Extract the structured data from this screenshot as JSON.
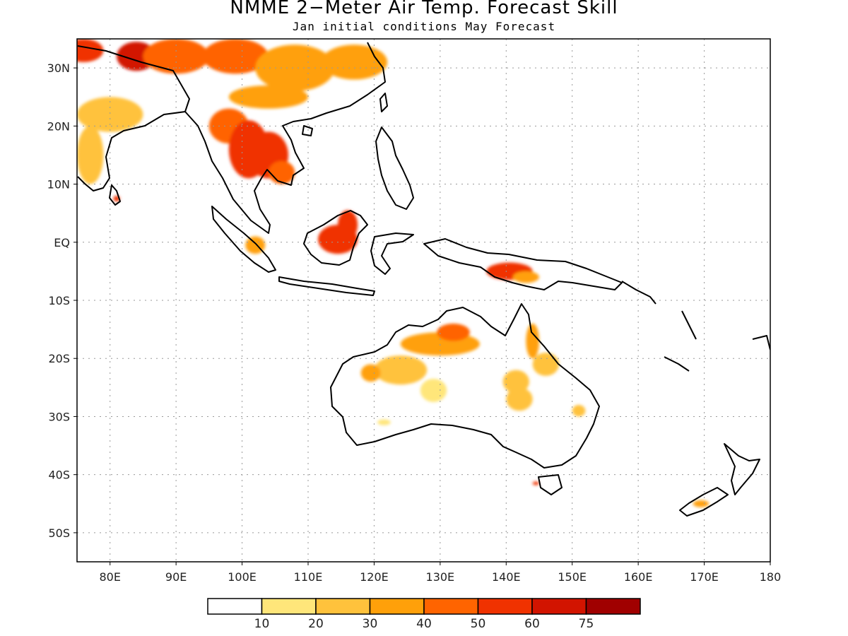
{
  "title": "NMME 2−Meter Air Temp. Forecast Skill",
  "subtitle": "Jan initial conditions  May Forecast",
  "map": {
    "lon_range": [
      75,
      180
    ],
    "lat_range": [
      -55,
      35
    ],
    "lat_ticks": [
      {
        "lat": 30,
        "label": "30N"
      },
      {
        "lat": 20,
        "label": "20N"
      },
      {
        "lat": 10,
        "label": "10N"
      },
      {
        "lat": 0,
        "label": "EQ"
      },
      {
        "lat": -10,
        "label": "10S"
      },
      {
        "lat": -20,
        "label": "20S"
      },
      {
        "lat": -30,
        "label": "30S"
      },
      {
        "lat": -40,
        "label": "40S"
      },
      {
        "lat": -50,
        "label": "50S"
      }
    ],
    "lon_ticks": [
      {
        "lon": 80,
        "label": "80E"
      },
      {
        "lon": 90,
        "label": "90E"
      },
      {
        "lon": 100,
        "label": "100E"
      },
      {
        "lon": 110,
        "label": "110E"
      },
      {
        "lon": 120,
        "label": "120E"
      },
      {
        "lon": 130,
        "label": "130E"
      },
      {
        "lon": 140,
        "label": "140E"
      },
      {
        "lon": 150,
        "label": "150E"
      },
      {
        "lon": 160,
        "label": "160E"
      },
      {
        "lon": 170,
        "label": "170E"
      },
      {
        "lon": 180,
        "label": "180"
      }
    ],
    "grid": true,
    "skill_patches": [
      {
        "lon": 76,
        "lat": 33,
        "rx": 3,
        "ry": 2,
        "level": 5
      },
      {
        "lon": 84,
        "lat": 32,
        "rx": 3,
        "ry": 2.5,
        "level": 6
      },
      {
        "lon": 90,
        "lat": 32,
        "rx": 5,
        "ry": 3,
        "level": 4
      },
      {
        "lon": 99,
        "lat": 32,
        "rx": 5,
        "ry": 3,
        "level": 4
      },
      {
        "lon": 108,
        "lat": 30,
        "rx": 6,
        "ry": 4,
        "level": 3
      },
      {
        "lon": 117,
        "lat": 31,
        "rx": 5,
        "ry": 3,
        "level": 3
      },
      {
        "lon": 104,
        "lat": 25,
        "rx": 6,
        "ry": 2,
        "level": 3
      },
      {
        "lon": 80,
        "lat": 22,
        "rx": 5,
        "ry": 3,
        "level": 2
      },
      {
        "lon": 77,
        "lat": 15,
        "rx": 2,
        "ry": 5,
        "level": 2
      },
      {
        "lon": 98,
        "lat": 20,
        "rx": 3,
        "ry": 3,
        "level": 4
      },
      {
        "lon": 101,
        "lat": 16,
        "rx": 3,
        "ry": 5,
        "level": 5
      },
      {
        "lon": 104,
        "lat": 15,
        "rx": 3,
        "ry": 4,
        "level": 5
      },
      {
        "lon": 106,
        "lat": 12,
        "rx": 2,
        "ry": 2,
        "level": 4
      },
      {
        "lon": 81,
        "lat": 7.5,
        "rx": 0.5,
        "ry": 0.5,
        "level": 5
      },
      {
        "lon": 114.5,
        "lat": 0.5,
        "rx": 3,
        "ry": 2.5,
        "level": 5
      },
      {
        "lon": 116,
        "lat": 3,
        "rx": 1.5,
        "ry": 2.5,
        "level": 5
      },
      {
        "lon": 102,
        "lat": -0.5,
        "rx": 1.5,
        "ry": 1.5,
        "level": 3
      },
      {
        "lon": 140.5,
        "lat": -5,
        "rx": 3.5,
        "ry": 1.5,
        "level": 5
      },
      {
        "lon": 143,
        "lat": -6,
        "rx": 2,
        "ry": 1,
        "level": 3
      },
      {
        "lon": 130,
        "lat": -17.5,
        "rx": 6,
        "ry": 2,
        "level": 3
      },
      {
        "lon": 132,
        "lat": -15.5,
        "rx": 2.5,
        "ry": 1.5,
        "level": 4
      },
      {
        "lon": 124,
        "lat": -22,
        "rx": 4,
        "ry": 2.5,
        "level": 2
      },
      {
        "lon": 119.5,
        "lat": -22.5,
        "rx": 1.5,
        "ry": 1.5,
        "level": 3
      },
      {
        "lon": 129,
        "lat": -25.5,
        "rx": 2,
        "ry": 2,
        "level": 1
      },
      {
        "lon": 141.5,
        "lat": -24,
        "rx": 2,
        "ry": 2,
        "level": 2
      },
      {
        "lon": 142,
        "lat": -27,
        "rx": 2,
        "ry": 2,
        "level": 2
      },
      {
        "lon": 144,
        "lat": -17,
        "rx": 1,
        "ry": 3,
        "level": 3
      },
      {
        "lon": 146,
        "lat": -21,
        "rx": 2,
        "ry": 2,
        "level": 2
      },
      {
        "lon": 151,
        "lat": -29,
        "rx": 1,
        "ry": 1,
        "level": 2
      },
      {
        "lon": 121.5,
        "lat": -31,
        "rx": 1,
        "ry": 0.5,
        "level": 1
      },
      {
        "lon": 144.5,
        "lat": -41.5,
        "rx": 0.5,
        "ry": 0.3,
        "level": 5
      },
      {
        "lon": 169.5,
        "lat": -45,
        "rx": 1.2,
        "ry": 0.6,
        "level": 3
      }
    ]
  },
  "colorbar": {
    "colors": [
      "#ffffff",
      "#ffe67a",
      "#ffc23c",
      "#ffa00a",
      "#ff6400",
      "#f03200",
      "#d21400",
      "#a00000"
    ],
    "labels": [
      "10",
      "20",
      "30",
      "40",
      "50",
      "60",
      "75"
    ]
  }
}
